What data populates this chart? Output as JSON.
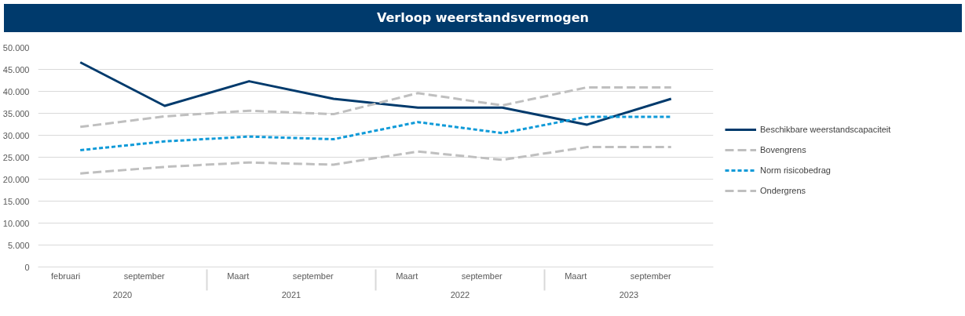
{
  "chart_data": {
    "type": "line",
    "title": "Verloop weerstandsvermogen",
    "categories": [
      "februari",
      "september",
      "Maart",
      "september",
      "Maart",
      "september",
      "Maart",
      "september"
    ],
    "annotations": [
      "2020",
      "2021",
      "2022",
      "2023"
    ],
    "series": [
      {
        "name": "Beschikbare weerstandscapaciteit",
        "color": "#003a6c",
        "line_style": "solid",
        "values": [
          46600,
          36700,
          42300,
          38300,
          36300,
          36300,
          32400,
          38300
        ]
      },
      {
        "name": "Bovengrens",
        "color": "#bfbfbf",
        "line_style": "dashed",
        "values": [
          31900,
          34300,
          35600,
          34800,
          39600,
          36800,
          40900,
          40900
        ]
      },
      {
        "name": "Norm risicobedrag",
        "color": "#0f9ad8",
        "line_style": "dotted",
        "values": [
          26600,
          28600,
          29700,
          29100,
          33000,
          30500,
          34200,
          34200
        ]
      },
      {
        "name": "Ondergrens",
        "color": "#bfbfbf",
        "line_style": "dashed",
        "values": [
          21300,
          22800,
          23800,
          23300,
          26300,
          24400,
          27300,
          27300
        ]
      }
    ],
    "ylim": [
      0,
      50000
    ],
    "yticks": [
      {
        "value": 0,
        "label": "0"
      },
      {
        "value": 5000,
        "label": "5.000"
      },
      {
        "value": 10000,
        "label": "10.000"
      },
      {
        "value": 15000,
        "label": "15.000"
      },
      {
        "value": 20000,
        "label": "20.000"
      },
      {
        "value": 25000,
        "label": "25.000"
      },
      {
        "value": 30000,
        "label": "30.000"
      },
      {
        "value": 35000,
        "label": "35.000"
      },
      {
        "value": 40000,
        "label": "40.000"
      },
      {
        "value": 45000,
        "label": "45.000"
      },
      {
        "value": 50000,
        "label": "50.000"
      }
    ],
    "grid": "y",
    "legend": "right"
  }
}
